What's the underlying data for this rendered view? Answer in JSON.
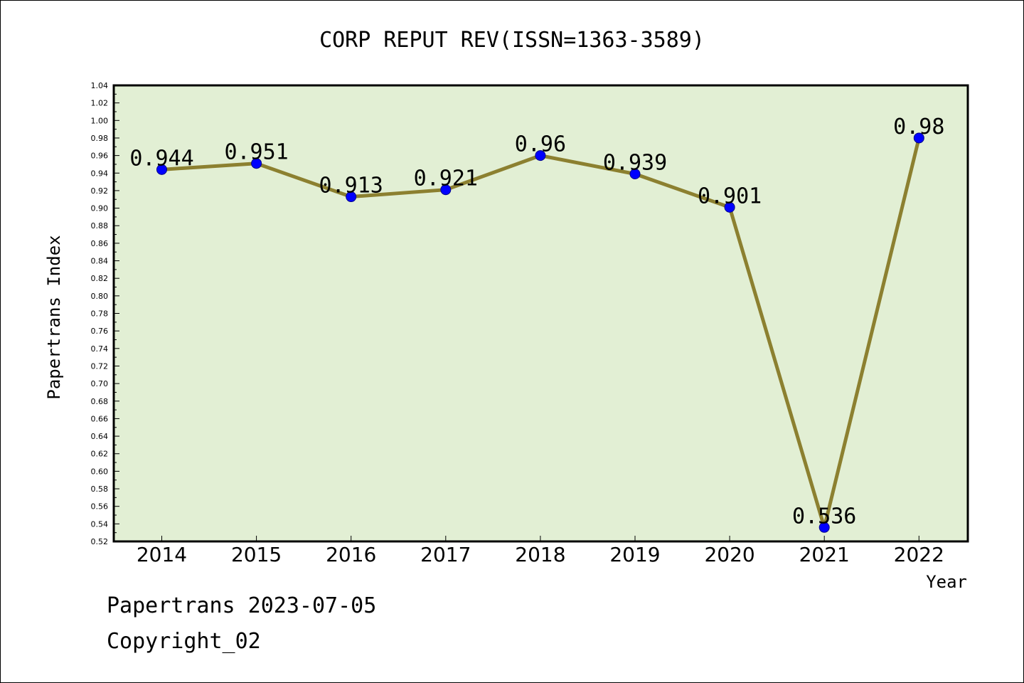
{
  "chart_data": {
    "type": "line",
    "title": "CORP REPUT REV(ISSN=1363-3589)",
    "xlabel": "Year",
    "ylabel": "Papertrans Index",
    "categories": [
      "2014",
      "2015",
      "2016",
      "2017",
      "2018",
      "2019",
      "2020",
      "2021",
      "2022"
    ],
    "series": [
      {
        "values": [
          0.944,
          0.951,
          0.913,
          0.921,
          0.96,
          0.939,
          0.901,
          0.536,
          0.98
        ],
        "labels": [
          "0.944",
          "0.951",
          "0.913",
          "0.921",
          "0.96",
          "0.939",
          "0.901",
          "0.536",
          "0.98"
        ]
      }
    ],
    "ylim": [
      0.52,
      1.04
    ],
    "yticks": [
      "0.52",
      "0.54",
      "0.56",
      "0.58",
      "0.60",
      "0.62",
      "0.64",
      "0.66",
      "0.68",
      "0.70",
      "0.72",
      "0.74",
      "0.76",
      "0.78",
      "0.80",
      "0.82",
      "0.84",
      "0.86",
      "0.88",
      "0.90",
      "0.92",
      "0.94",
      "0.96",
      "0.98",
      "1.00",
      "1.02",
      "1.04"
    ],
    "grid": false,
    "colors": {
      "plot_background": "#e2efd4",
      "line": "#8c8030",
      "marker": "#0000ff"
    }
  },
  "footer": {
    "line1": "Papertrans 2023-07-05",
    "line2": "Copyright_02"
  }
}
